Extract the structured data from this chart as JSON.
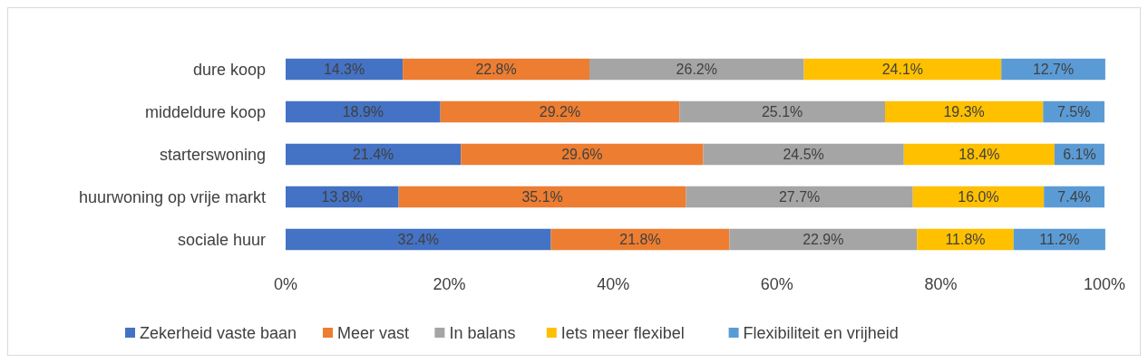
{
  "chart_data": {
    "type": "bar",
    "orientation": "horizontal",
    "stacked": true,
    "legend": "bottom",
    "categories": [
      "dure koop",
      "middeldure koop",
      "starterswoning",
      "huurwoning op vrije markt",
      "sociale huur"
    ],
    "xlim": [
      0,
      100
    ],
    "xticks": [
      {
        "value": 0,
        "label": "0%"
      },
      {
        "value": 20,
        "label": "20%"
      },
      {
        "value": 40,
        "label": "40%"
      },
      {
        "value": 60,
        "label": "60%"
      },
      {
        "value": 80,
        "label": "80%"
      },
      {
        "value": 100,
        "label": "100%"
      }
    ],
    "series": [
      {
        "name": "Zekerheid vaste baan",
        "color": "#4472c4",
        "values": [
          14.3,
          18.9,
          21.4,
          13.8,
          32.4
        ],
        "value_labels": [
          "14.3%",
          "18.9%",
          "21.4%",
          "13.8%",
          "32.4%"
        ]
      },
      {
        "name": "Meer vast",
        "color": "#ed7d31",
        "values": [
          22.8,
          29.2,
          29.6,
          35.1,
          21.8
        ],
        "value_labels": [
          "22.8%",
          "29.2%",
          "29.6%",
          "35.1%",
          "21.8%"
        ]
      },
      {
        "name": "In balans",
        "color": "#a5a5a5",
        "values": [
          26.2,
          25.1,
          24.5,
          27.7,
          22.9
        ],
        "value_labels": [
          "26.2%",
          "25.1%",
          "24.5%",
          "27.7%",
          "22.9%"
        ]
      },
      {
        "name": "Iets meer flexibel",
        "color": "#ffc000",
        "values": [
          24.1,
          19.3,
          18.4,
          16.0,
          11.8
        ],
        "value_labels": [
          "24.1%",
          "19.3%",
          "18.4%",
          "16.0%",
          "11.8%"
        ]
      },
      {
        "name": "Flexibiliteit en vrijheid",
        "color": "#5b9bd5",
        "values": [
          12.7,
          7.5,
          6.1,
          7.4,
          11.2
        ],
        "value_labels": [
          "12.7%",
          "7.5%",
          "6.1%",
          "7.4%",
          "11.2%"
        ]
      }
    ]
  }
}
